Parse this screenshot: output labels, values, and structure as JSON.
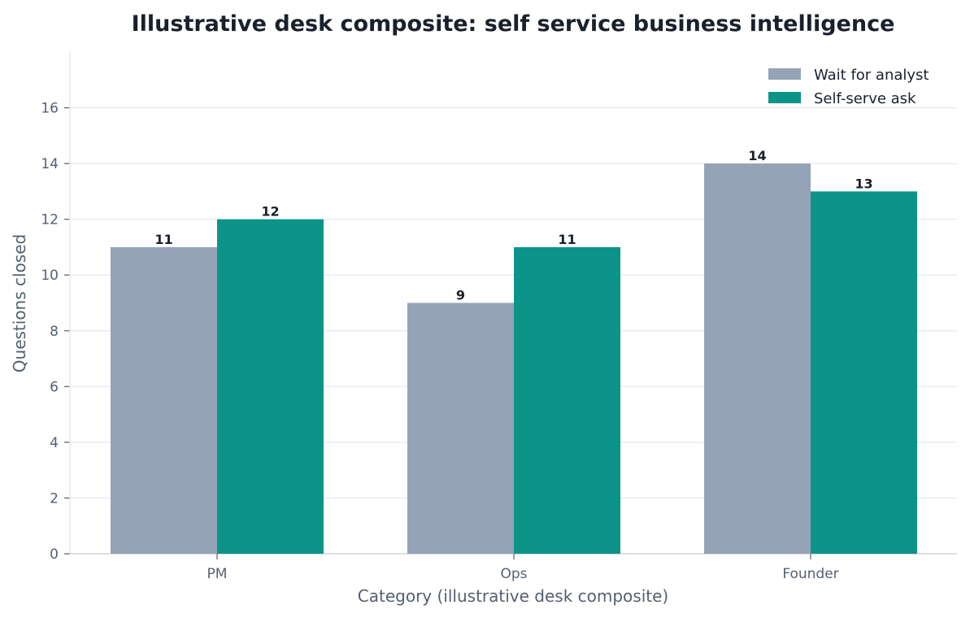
{
  "chart_data": {
    "type": "bar",
    "title": "Illustrative desk composite: self service business intelligence",
    "xlabel": "Category (illustrative desk composite)",
    "ylabel": "Questions closed",
    "categories": [
      "PM",
      "Ops",
      "Founder"
    ],
    "series": [
      {
        "name": "Wait for analyst",
        "values": [
          11,
          9,
          14
        ],
        "color": "#95a3b8"
      },
      {
        "name": "Self-serve ask",
        "values": [
          12,
          11,
          13
        ],
        "color": "#0d9488"
      }
    ],
    "ylim": [
      0,
      18
    ],
    "yticks": [
      0,
      2,
      4,
      6,
      8,
      10,
      12,
      14,
      16
    ],
    "grid": "horizontal",
    "legend": "top-right",
    "colors": {
      "text": "#1a202c",
      "muted": "#556070",
      "grid": "#e5e7eb",
      "axis": "#d1d5db"
    }
  }
}
